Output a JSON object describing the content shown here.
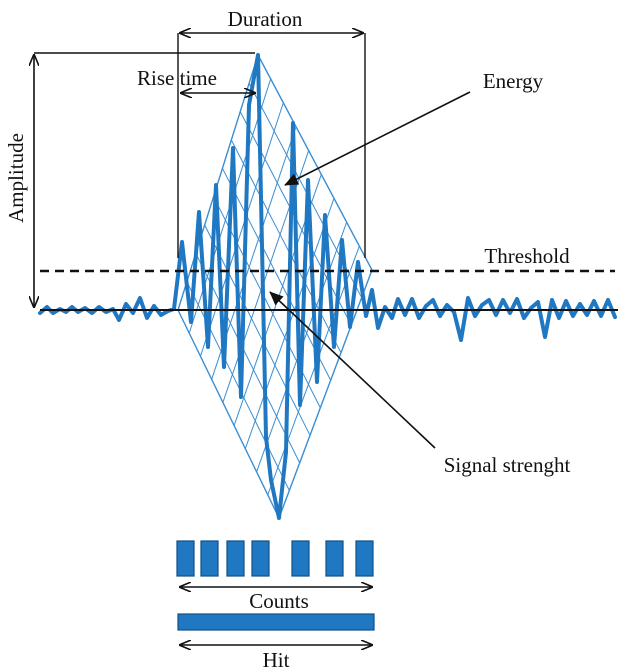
{
  "labels": {
    "duration": "Duration",
    "rise_time": "Rise time",
    "energy": "Energy",
    "amplitude": "Amplitude",
    "threshold": "Threshold",
    "signal_strength": "Signal strenght",
    "counts": "Counts",
    "hit": "Hit"
  },
  "colors": {
    "signal": "#1f78c1",
    "mesh": "#3a8ed4",
    "annotation": "#111111"
  },
  "counts_boxes": 7
}
